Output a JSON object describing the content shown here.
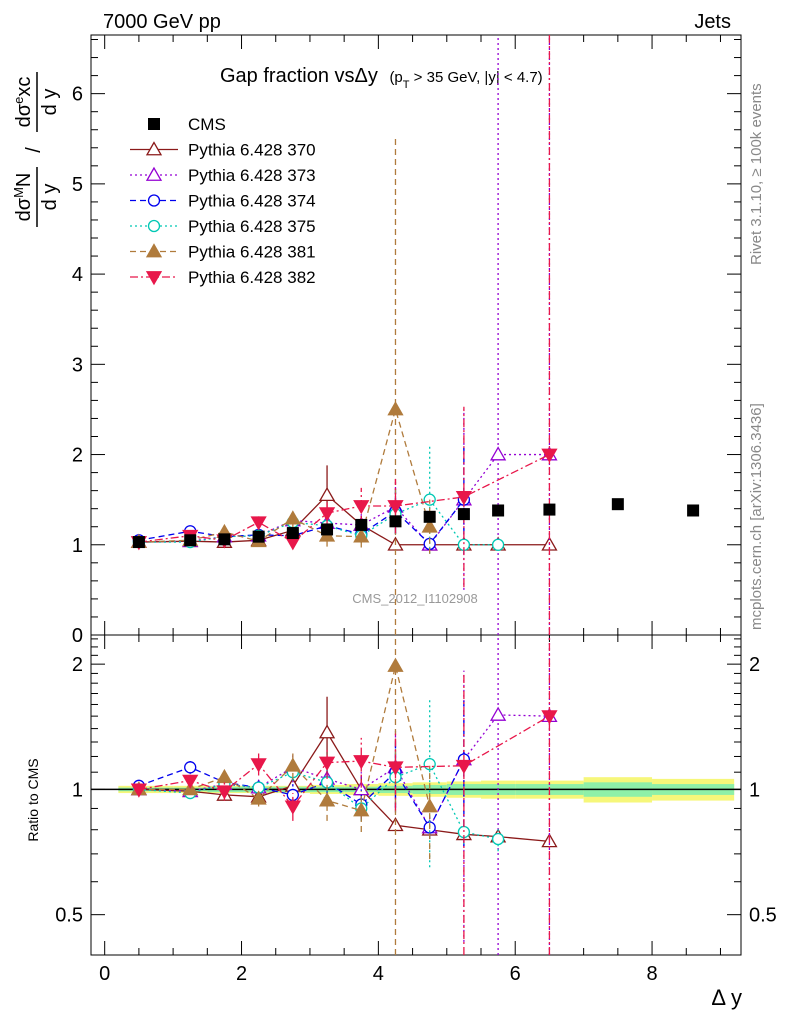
{
  "header": {
    "energy_label": "7000 GeV pp",
    "process_label": "Jets",
    "rivet_label": "Rivet 3.1.10, ≥ 100k events",
    "source_label": "mcplots.cern.ch [arXiv:1306.3436]",
    "analysis_label": "CMS_2012_I1102908"
  },
  "chart_data": [
    {
      "type": "scatter",
      "panel": "main",
      "title": "Gap fraction vsΔy",
      "title_suffix": "(p_T > 35 GeV, |y| < 4.7)",
      "ylabel": "dσ^M N/dy / dσ^e xc/dy",
      "xlim": [
        -0.2,
        9.3
      ],
      "ylim": [
        0,
        6.65
      ],
      "yticks": [
        0,
        1,
        2,
        3,
        4,
        5,
        6
      ],
      "grid": false,
      "legend_position": "top-left",
      "data": {
        "name": "CMS",
        "color": "#000000",
        "x": [
          0.5,
          1.25,
          1.75,
          2.25,
          2.75,
          3.25,
          3.75,
          4.25,
          4.75,
          5.25,
          5.75,
          6.5,
          7.5,
          8.6
        ],
        "y": [
          1.03,
          1.05,
          1.06,
          1.09,
          1.13,
          1.17,
          1.22,
          1.26,
          1.31,
          1.34,
          1.38,
          1.39,
          1.45,
          1.38
        ],
        "yerr": [
          0.01,
          0.01,
          0.01,
          0.02,
          0.02,
          0.03,
          0.04,
          0.04,
          0.04,
          0.04,
          0.03,
          0.03,
          0.03,
          0.03
        ]
      },
      "series": [
        {
          "name": "Pythia 6.428 370",
          "color": "#8b1a1a",
          "marker": "triangle-open",
          "dash": "solid",
          "x": [
            0.5,
            1.25,
            1.75,
            2.25,
            2.75,
            3.25,
            3.75,
            4.25,
            4.75,
            5.25,
            5.75,
            6.5
          ],
          "y": [
            1.03,
            1.04,
            1.03,
            1.05,
            1.16,
            1.55,
            1.22,
            1.0,
            1.0,
            1.0,
            1.0,
            1.0
          ],
          "yerr": [
            0.02,
            0.03,
            0.03,
            0.04,
            0.08,
            0.33,
            0.1,
            0,
            0,
            0,
            0,
            0
          ]
        },
        {
          "name": "Pythia 6.428 373",
          "color": "#9400d3",
          "marker": "triangle-open",
          "dash": "dotted",
          "x": [
            0.5,
            1.25,
            1.75,
            2.25,
            2.75,
            3.25,
            3.75,
            4.25,
            4.75,
            5.25,
            5.75,
            6.5
          ],
          "y": [
            1.03,
            1.04,
            1.09,
            1.1,
            1.27,
            1.24,
            1.22,
            1.42,
            1.0,
            1.5,
            2.0,
            2.0
          ],
          "yerr": [
            0.02,
            0.03,
            0.04,
            0.05,
            0.1,
            0.12,
            0.12,
            0.3,
            0.05,
            1.0,
            4.8,
            4.8
          ]
        },
        {
          "name": "Pythia 6.428 374",
          "color": "#0000ee",
          "marker": "circle-open",
          "dash": "dashed",
          "x": [
            0.5,
            1.25,
            1.75,
            2.25,
            2.75,
            3.25,
            3.75,
            4.25,
            4.75,
            5.25
          ],
          "y": [
            1.05,
            1.15,
            1.09,
            1.11,
            1.1,
            1.21,
            1.12,
            1.37,
            1.01,
            1.5
          ],
          "yerr": [
            0.02,
            0.04,
            0.04,
            0.04,
            0.06,
            0.1,
            0.1,
            0.25,
            0.05,
            0.6
          ]
        },
        {
          "name": "Pythia 6.428 375",
          "color": "#00c8b4",
          "marker": "circle-open",
          "dash": "dotted",
          "x": [
            0.5,
            1.25,
            1.75,
            2.25,
            2.75,
            3.25,
            3.75,
            4.25,
            4.75,
            5.25,
            5.75
          ],
          "y": [
            1.03,
            1.03,
            1.09,
            1.1,
            1.25,
            1.21,
            1.1,
            1.34,
            1.5,
            1.0,
            1.0
          ],
          "yerr": [
            0.02,
            0.03,
            0.04,
            0.04,
            0.06,
            0.1,
            0.08,
            0.2,
            0.6,
            0.05,
            0.05
          ]
        },
        {
          "name": "Pythia 6.428 381",
          "color": "#b07b3c",
          "marker": "triangle-filled",
          "dash": "dashed",
          "x": [
            0.5,
            1.25,
            1.75,
            2.25,
            2.75,
            3.25,
            3.75,
            4.25,
            4.75
          ],
          "y": [
            1.03,
            1.05,
            1.14,
            1.04,
            1.29,
            1.1,
            1.09,
            2.5,
            1.2
          ],
          "yerr": [
            0.02,
            0.03,
            0.04,
            0.04,
            0.1,
            0.12,
            0.12,
            3.04,
            0.3
          ]
        },
        {
          "name": "Pythia 6.428 382",
          "color": "#e8174a",
          "marker": "triangle-down-filled",
          "dash": "dashdot",
          "x": [
            0.5,
            1.25,
            1.75,
            2.25,
            2.75,
            3.25,
            3.75,
            4.25,
            5.25,
            6.5
          ],
          "y": [
            1.03,
            1.1,
            1.05,
            1.25,
            1.03,
            1.35,
            1.43,
            1.43,
            1.53,
            2.0
          ],
          "yerr": [
            0.02,
            0.04,
            0.05,
            0.08,
            0.08,
            0.12,
            0.2,
            0.3,
            1.0,
            4.8
          ]
        }
      ]
    },
    {
      "type": "scatter",
      "panel": "ratio",
      "xlabel": "Δ y",
      "ylabel": "Ratio to CMS",
      "xlim": [
        -0.2,
        9.3
      ],
      "ylim": [
        0.4,
        2.35
      ],
      "yticks": [
        0.5,
        1,
        2
      ],
      "ytick_labels": [
        "0.5",
        "1",
        "2"
      ],
      "xticks": [
        0,
        2,
        4,
        6,
        8
      ],
      "xtick_labels": [
        "0",
        "2",
        "4",
        "6",
        "8"
      ],
      "band_x": [
        0.2,
        0.8,
        1.0,
        1.5,
        2.0,
        2.5,
        3.0,
        3.5,
        4.0,
        4.5,
        5.0,
        5.5,
        6.0,
        7.0,
        8.0,
        9.2
      ],
      "band_inner": [
        0.01,
        0.01,
        0.01,
        0.015,
        0.015,
        0.015,
        0.015,
        0.015,
        0.02,
        0.025,
        0.03,
        0.03,
        0.03,
        0.04,
        0.03,
        0.03
      ],
      "band_outer": [
        0.02,
        0.02,
        0.02,
        0.02,
        0.02,
        0.02,
        0.025,
        0.03,
        0.035,
        0.04,
        0.045,
        0.05,
        0.05,
        0.07,
        0.06,
        0.06
      ],
      "series": [
        {
          "name": "Pythia 6.428 370",
          "x": [
            0.5,
            1.25,
            1.75,
            2.25,
            2.75,
            3.25,
            3.75,
            4.25,
            4.75,
            5.25,
            5.75,
            6.5
          ],
          "y": [
            1.0,
            0.99,
            0.97,
            0.96,
            1.02,
            1.37,
            1.0,
            0.82,
            0.8,
            0.78,
            0.77,
            0.75
          ],
          "yerr": [
            0.02,
            0.03,
            0.03,
            0.04,
            0.07,
            0.3,
            0.08,
            0,
            0,
            0,
            0,
            0
          ]
        },
        {
          "name": "Pythia 6.428 373",
          "x": [
            0.5,
            1.25,
            1.75,
            2.25,
            2.75,
            3.25,
            3.75,
            4.25,
            4.75,
            5.25,
            5.75,
            6.5
          ],
          "y": [
            1.0,
            0.99,
            1.03,
            1.01,
            1.13,
            1.06,
            1.0,
            1.13,
            0.81,
            1.18,
            1.51,
            1.5
          ],
          "yerr": [
            0.02,
            0.03,
            0.04,
            0.05,
            0.09,
            0.1,
            0.1,
            0.25,
            0.05,
            0.75,
            3.5,
            3.5
          ]
        },
        {
          "name": "Pythia 6.428 374",
          "x": [
            0.5,
            1.25,
            1.75,
            2.25,
            2.75,
            3.25,
            3.75,
            4.25,
            4.75,
            5.25
          ],
          "y": [
            1.02,
            1.13,
            1.04,
            1.01,
            0.97,
            1.04,
            0.92,
            1.1,
            0.81,
            1.18
          ],
          "yerr": [
            0.02,
            0.04,
            0.04,
            0.04,
            0.06,
            0.08,
            0.08,
            0.2,
            0.05,
            0.45
          ]
        },
        {
          "name": "Pythia 6.428 375",
          "x": [
            0.5,
            1.25,
            1.75,
            2.25,
            2.75,
            3.25,
            3.75,
            4.25,
            4.75,
            5.25,
            5.75
          ],
          "y": [
            1.0,
            0.98,
            1.03,
            1.01,
            1.1,
            1.04,
            0.9,
            1.07,
            1.15,
            0.79,
            0.76
          ],
          "yerr": [
            0.02,
            0.03,
            0.04,
            0.04,
            0.05,
            0.08,
            0.06,
            0.15,
            0.5,
            0.05,
            0.05
          ]
        },
        {
          "name": "Pythia 6.428 381",
          "x": [
            0.5,
            1.25,
            1.75,
            2.25,
            2.75,
            3.25,
            3.75,
            4.25,
            4.75
          ],
          "y": [
            1.0,
            1.0,
            1.07,
            0.95,
            1.14,
            0.94,
            0.89,
            1.98,
            0.91
          ],
          "yerr": [
            0.02,
            0.03,
            0.04,
            0.04,
            0.08,
            0.1,
            0.1,
            2.4,
            0.23
          ]
        },
        {
          "name": "Pythia 6.428 382",
          "x": [
            0.5,
            1.25,
            1.75,
            2.25,
            2.75,
            3.25,
            3.75,
            4.25,
            5.25,
            6.5
          ],
          "y": [
            1.0,
            1.05,
            0.99,
            1.15,
            0.91,
            1.16,
            1.17,
            1.13,
            1.14,
            1.5
          ],
          "yerr": [
            0.02,
            0.04,
            0.05,
            0.07,
            0.07,
            0.1,
            0.16,
            0.24,
            0.75,
            3.5
          ]
        }
      ]
    }
  ]
}
